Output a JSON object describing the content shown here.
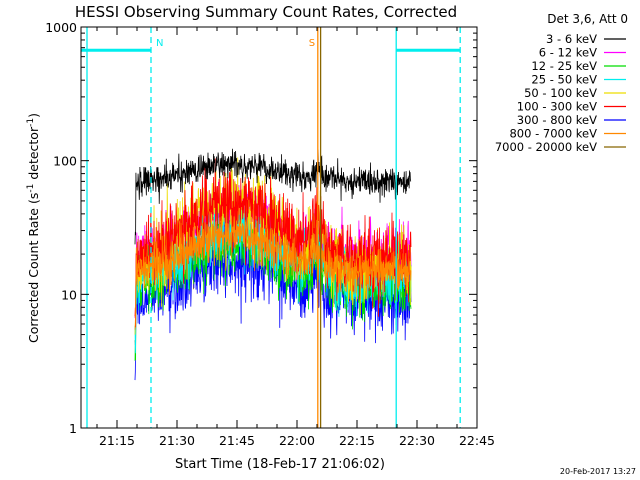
{
  "chart_data": {
    "type": "line",
    "title": "HESSI Observing Summary Count Rates, Corrected",
    "xlabel": "Start Time (18-Feb-17 21:06:02)",
    "ylabel_main": "Corrected Count Rate (s",
    "ylabel_sup1": "-1",
    "ylabel_mid": " detector",
    "ylabel_sup2": "-1",
    "ylabel_end": ")",
    "footer_date": "20-Feb-2017 13:27",
    "yscale": "log",
    "ylim": [
      1,
      1000
    ],
    "xlim_minutes": [
      66,
      165
    ],
    "x_unit": "minutes after 20:00 UT",
    "x_ticks": [
      {
        "t": 75,
        "label": "21:15"
      },
      {
        "t": 90,
        "label": "21:30"
      },
      {
        "t": 105,
        "label": "21:45"
      },
      {
        "t": 120,
        "label": "22:00"
      },
      {
        "t": 135,
        "label": "22:15"
      },
      {
        "t": 150,
        "label": "22:30"
      },
      {
        "t": 165,
        "label": "22:45"
      }
    ],
    "y_ticks": [
      {
        "v": 1,
        "label": "1"
      },
      {
        "v": 10,
        "label": "10"
      },
      {
        "v": 100,
        "label": "100"
      },
      {
        "v": 1000,
        "label": "1000"
      }
    ],
    "legend_title": "Det 3,6, Att 0",
    "legend_placement": "right, outside plot",
    "series": [
      {
        "name": "3 - 6 keV",
        "color": "#000000",
        "base": 70,
        "peak": 1.35,
        "noise": 0.12,
        "z": 9
      },
      {
        "name": "6 - 12 keV",
        "color": "#ff00ff",
        "base": 20,
        "peak": 2.2,
        "noise": 0.25,
        "z": 3
      },
      {
        "name": "12 - 25 keV",
        "color": "#00dd00",
        "base": 11.5,
        "peak": 2.1,
        "noise": 0.25,
        "z": 4
      },
      {
        "name": "25 - 50 keV",
        "color": "#00eeee",
        "base": 13,
        "peak": 2.3,
        "noise": 0.25,
        "z": 5
      },
      {
        "name": "50 - 100 keV",
        "color": "#eedd00",
        "base": 16,
        "peak": 3.1,
        "noise": 0.3,
        "z": 6
      },
      {
        "name": "100 - 300 keV",
        "color": "#ff0000",
        "base": 19,
        "peak": 2.5,
        "noise": 0.3,
        "z": 7
      },
      {
        "name": "300 - 800 keV",
        "color": "#0000ff",
        "base": 9,
        "peak": 2.0,
        "noise": 0.28,
        "z": 2
      },
      {
        "name": "800 - 7000 keV",
        "color": "#ff8800",
        "base": 15,
        "peak": 1.9,
        "noise": 0.18,
        "z": 8
      },
      {
        "name": "7000 - 20000 keV",
        "color": "#886600",
        "base": 15,
        "peak": 1.9,
        "noise": 0.18,
        "z": 1
      }
    ],
    "series_time_range_minutes": [
      79.5,
      148.5
    ],
    "events": [
      {
        "t": 67.5,
        "type": "night-end"
      },
      {
        "t": 83.5,
        "type": "N-start",
        "label": "N"
      },
      {
        "t": 144.8,
        "type": "night-start"
      },
      {
        "t": 160.8,
        "type": "N-end"
      },
      {
        "t": 125.2,
        "type": "S-start",
        "label": "S"
      },
      {
        "t": 125.9,
        "type": "S-end"
      }
    ],
    "night_bars": [
      {
        "t0": 66,
        "t1": 83.5,
        "v": 670
      },
      {
        "t0": 144.8,
        "t1": 160.8,
        "v": 670
      }
    ],
    "colors": {
      "axis": "#000000",
      "night": "#00eeee",
      "saa": "#ff8800",
      "saa_dark": "#886600"
    }
  }
}
